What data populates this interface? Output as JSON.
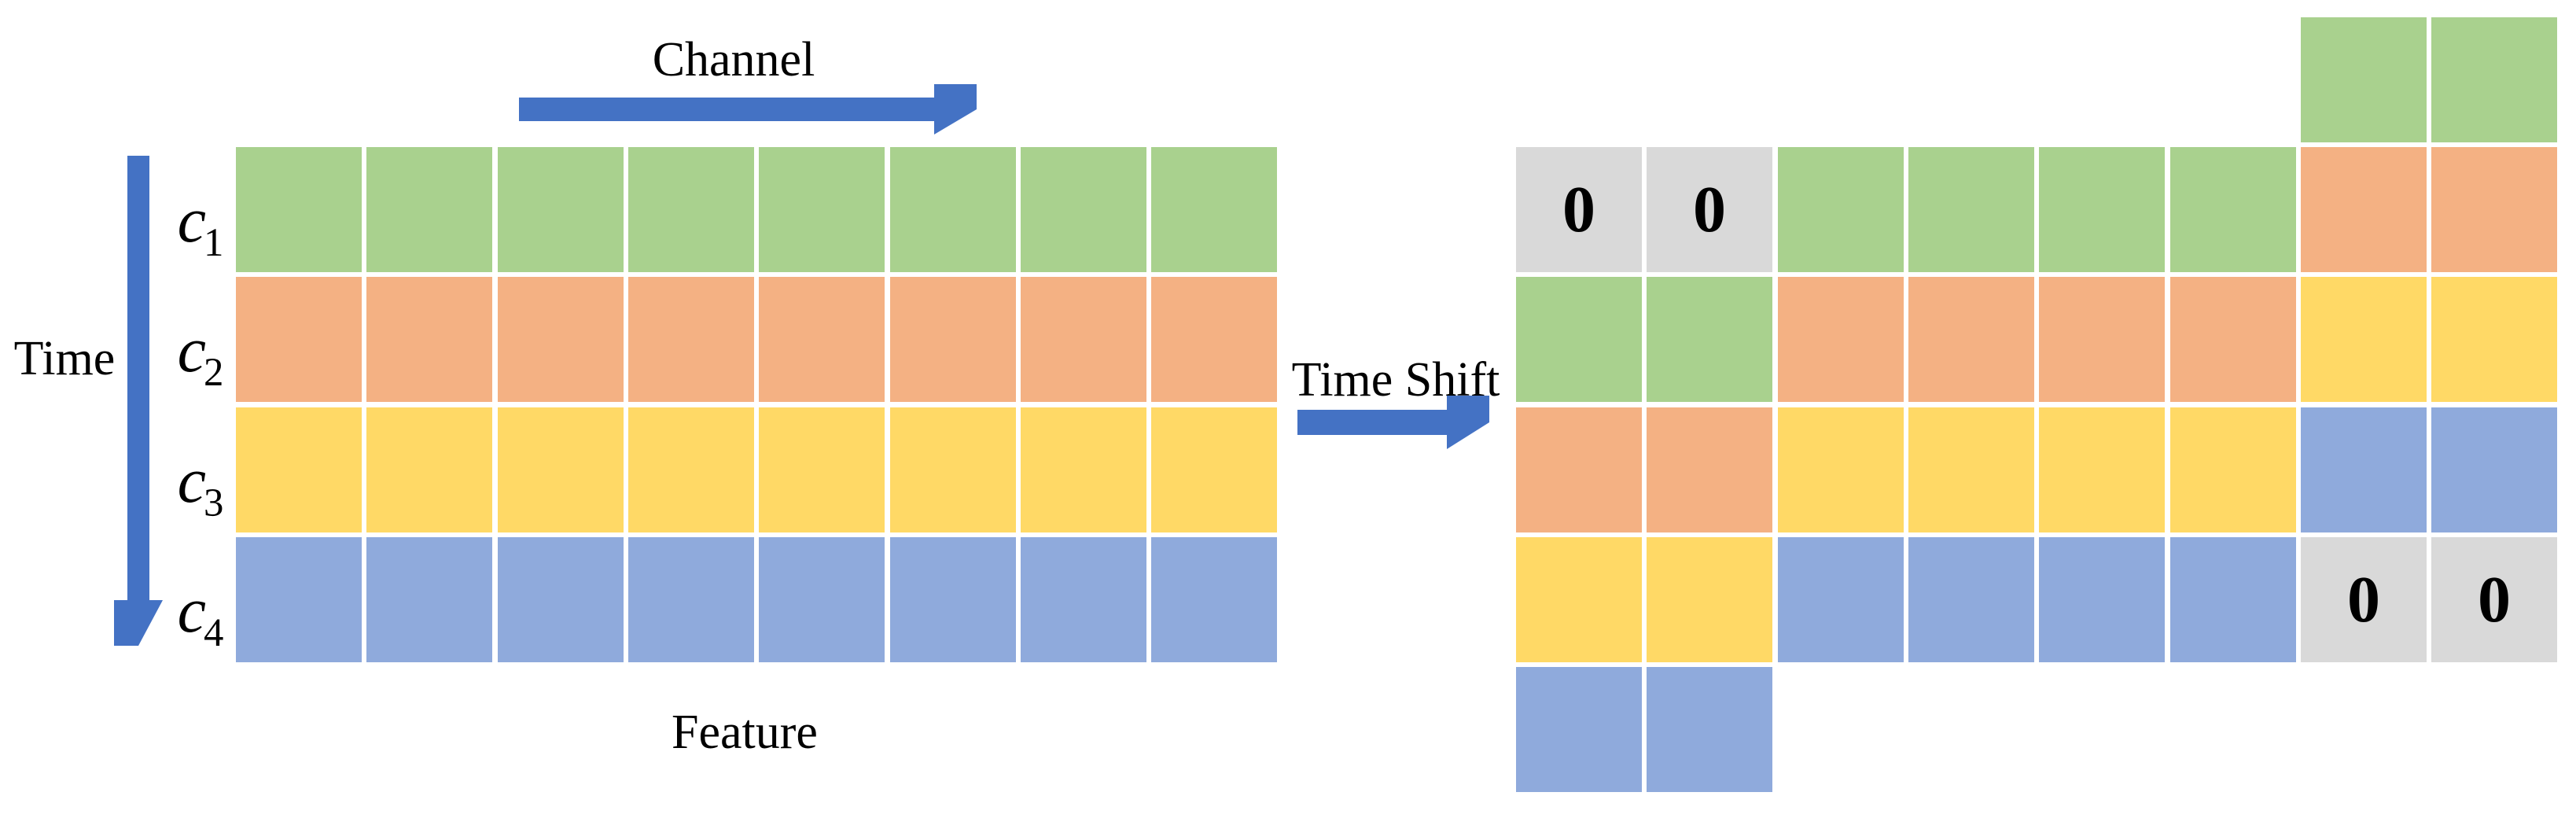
{
  "title_labels": {
    "channel": "Channel",
    "time": "Time",
    "time_shift": "Time Shift",
    "feature": "Feature"
  },
  "zero": "0",
  "colors": {
    "green": "#A9D18E",
    "orange": "#F4B183",
    "yellow": "#FFD966",
    "blue": "#8FAADC",
    "gray": "#D9D9D9",
    "arrow_blue": "#4472C4",
    "text": "#000000",
    "background": "#FFFFFF"
  },
  "channel_labels": [
    {
      "base": "c",
      "sub": "1"
    },
    {
      "base": "c",
      "sub": "2"
    },
    {
      "base": "c",
      "sub": "3"
    },
    {
      "base": "c",
      "sub": "4"
    }
  ],
  "left_grid": {
    "cols": 8,
    "rows": 4,
    "row_colors": [
      "green",
      "orange",
      "yellow",
      "blue"
    ]
  },
  "right_grid": {
    "cols": 8,
    "rows": [
      [
        null,
        null,
        null,
        null,
        null,
        null,
        "green",
        "green"
      ],
      [
        "zero",
        "zero",
        "green",
        "green",
        "green",
        "green",
        "orange",
        "orange"
      ],
      [
        "green",
        "green",
        "orange",
        "orange",
        "orange",
        "orange",
        "yellow",
        "yellow"
      ],
      [
        "orange",
        "orange",
        "yellow",
        "yellow",
        "yellow",
        "yellow",
        "blue",
        "blue"
      ],
      [
        "yellow",
        "yellow",
        "blue",
        "blue",
        "blue",
        "blue",
        "zero",
        "zero"
      ],
      [
        "blue",
        "blue",
        null,
        null,
        null,
        null,
        null,
        null
      ]
    ]
  }
}
